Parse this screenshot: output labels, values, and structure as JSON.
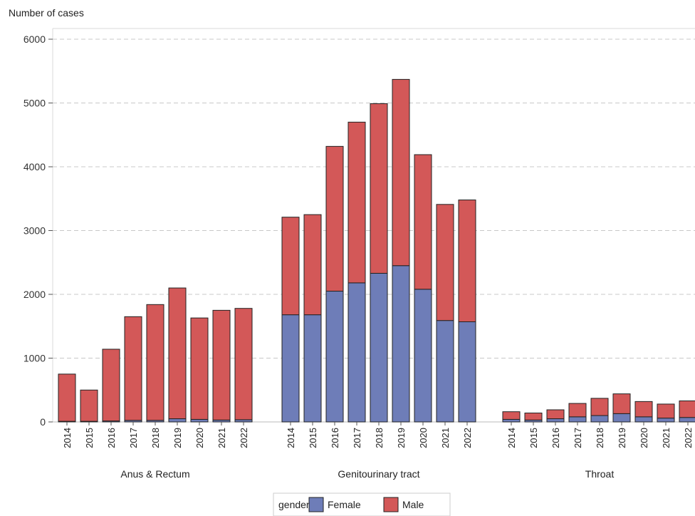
{
  "chart_data": {
    "type": "bar",
    "stacked": true,
    "ylabel": "Number of cases",
    "ylim": [
      0,
      6100
    ],
    "yticks": [
      0,
      1000,
      2000,
      3000,
      4000,
      5000,
      6000
    ],
    "grid": true,
    "legend": {
      "title": "gender",
      "placement": "bottom",
      "entries": [
        "Female",
        "Male"
      ]
    },
    "colors": {
      "Female": "#6e7db8",
      "Male": "#d35858"
    },
    "groups": [
      {
        "name": "Anus & Rectum",
        "categories": [
          "2014",
          "2015",
          "2016",
          "2017",
          "2018",
          "2019",
          "2020",
          "2021",
          "2022"
        ],
        "series": [
          {
            "name": "Female",
            "values": [
              10,
              10,
              15,
              25,
              25,
              50,
              40,
              30,
              35
            ]
          },
          {
            "name": "Male",
            "values": [
              740,
              490,
              1125,
              1625,
              1815,
              2050,
              1590,
              1720,
              1745
            ]
          }
        ]
      },
      {
        "name": "Genitourinary tract",
        "categories": [
          "2014",
          "2015",
          "2016",
          "2017",
          "2018",
          "2019",
          "2020",
          "2021",
          "2022"
        ],
        "series": [
          {
            "name": "Female",
            "values": [
              1680,
              1680,
              2050,
              2180,
              2330,
              2450,
              2080,
              1590,
              1570
            ]
          },
          {
            "name": "Male",
            "values": [
              1530,
              1570,
              2270,
              2520,
              2660,
              2920,
              2110,
              1820,
              1910
            ]
          }
        ]
      },
      {
        "name": "Throat",
        "categories": [
          "2014",
          "2015",
          "2016",
          "2017",
          "2018",
          "2019",
          "2020",
          "2021",
          "2022"
        ],
        "series": [
          {
            "name": "Female",
            "values": [
              40,
              30,
              50,
              80,
              100,
              130,
              80,
              60,
              70
            ]
          },
          {
            "name": "Male",
            "values": [
              120,
              110,
              140,
              210,
              270,
              310,
              240,
              220,
              260
            ]
          }
        ]
      }
    ]
  }
}
